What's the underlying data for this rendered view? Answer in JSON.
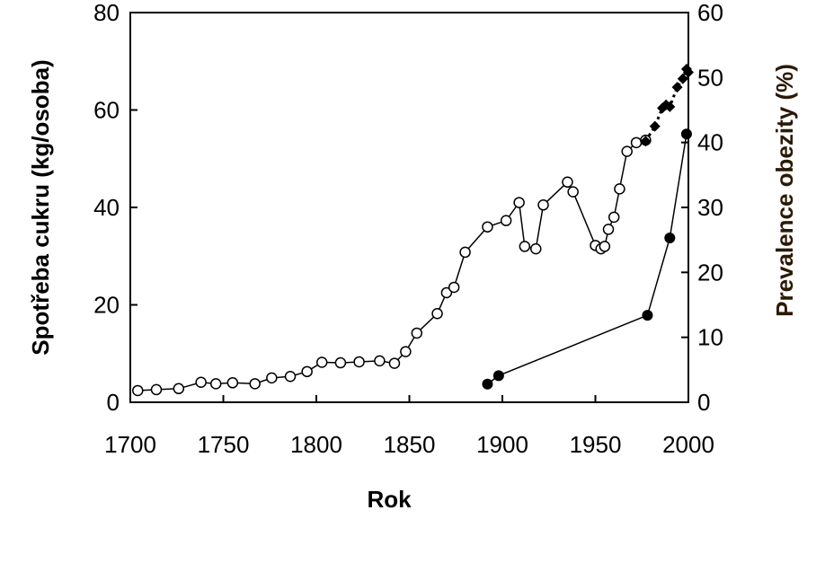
{
  "chart_data": {
    "type": "line",
    "xlabel": "Rok",
    "ylabel": "Spotřeba cukru (kg/osoba)",
    "y2label": "Prevalence obezity (%)",
    "xlim": [
      1700,
      2000
    ],
    "ylim": [
      0,
      80
    ],
    "y2lim": [
      0,
      60
    ],
    "x_ticks": [
      "1700",
      "1750",
      "1800",
      "1850",
      "1900",
      "1950",
      "2000"
    ],
    "y_ticks": [
      "0",
      "20",
      "40",
      "60",
      "80"
    ],
    "y2_ticks": [
      "0",
      "10",
      "20",
      "30",
      "40",
      "50",
      "60"
    ],
    "grid": false,
    "series": [
      {
        "axis": "left",
        "marker": "open-circle",
        "line": "solid",
        "x": [
          1704,
          1714,
          1726,
          1738,
          1746,
          1755,
          1767,
          1776,
          1786,
          1795,
          1803,
          1813,
          1823,
          1834,
          1842,
          1848,
          1854,
          1865,
          1870,
          1874,
          1880,
          1892,
          1902,
          1909,
          1912,
          1918,
          1922,
          1935,
          1938,
          1950,
          1953,
          1955,
          1957,
          1960,
          1963,
          1967,
          1972,
          1977
        ],
        "y": [
          2.4,
          2.6,
          2.8,
          4.1,
          3.8,
          4.0,
          3.8,
          5.0,
          5.3,
          6.3,
          8.2,
          8.1,
          8.3,
          8.5,
          8.0,
          10.4,
          14.2,
          18.2,
          22.5,
          23.6,
          30.8,
          36.0,
          37.3,
          41.0,
          32.0,
          31.5,
          40.5,
          45.2,
          43.2,
          32.2,
          31.5,
          32.0,
          35.5,
          38.0,
          43.8,
          51.5,
          53.3,
          53.8
        ]
      },
      {
        "axis": "right",
        "marker": "filled-diamond",
        "line": "dotted",
        "x": [
          1977,
          1982,
          1986,
          1988,
          1990,
          1994,
          1997,
          1999,
          2000
        ],
        "y": [
          40.2,
          42.5,
          45.3,
          45.8,
          45.5,
          48.5,
          49.8,
          51.3,
          50.8
        ]
      },
      {
        "axis": "right",
        "marker": "filled-circle",
        "line": "solid",
        "x": [
          1892,
          1898,
          1978,
          1990,
          1999
        ],
        "y": [
          2.8,
          4.1,
          13.4,
          25.3,
          41.3
        ]
      }
    ]
  },
  "colors": {
    "line": "#000000",
    "marker_open_fill": "#ffffff",
    "marker_filled": "#000000",
    "right_axis_label": "#2b1a06"
  }
}
